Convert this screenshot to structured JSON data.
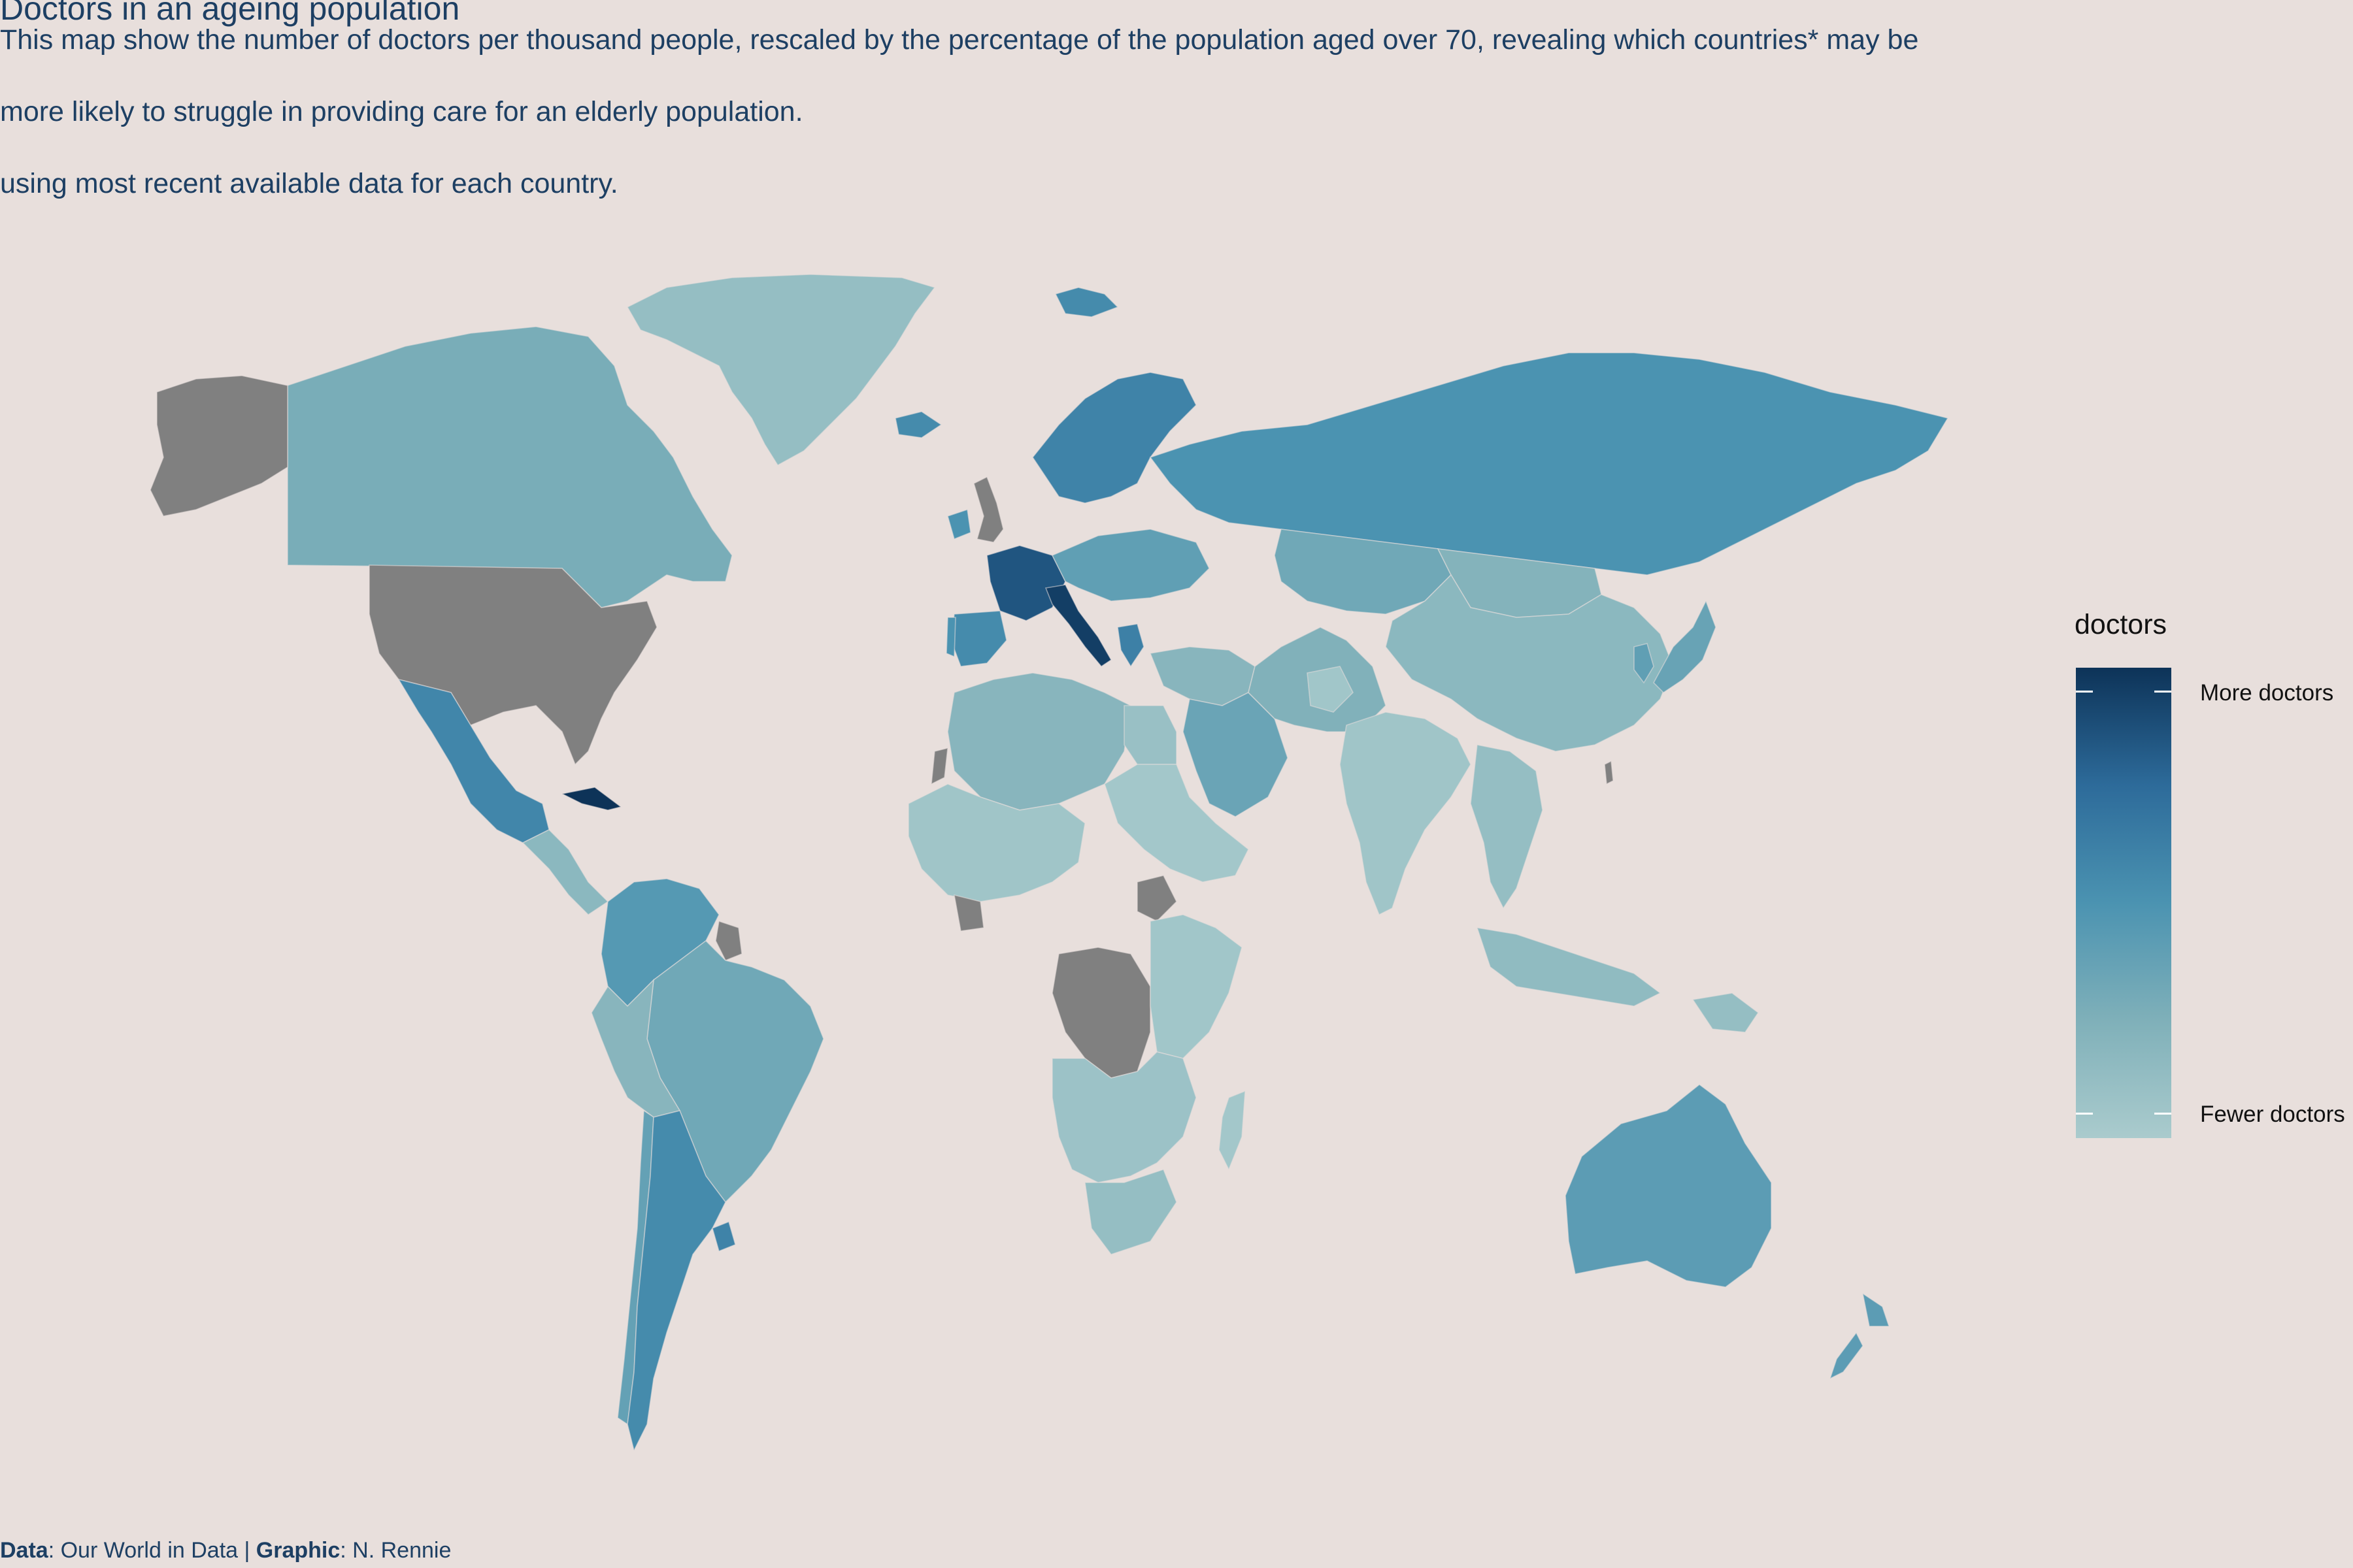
{
  "title": "Doctors in an ageing population",
  "subtitle_lines": [
    "This map show the number of doctors per thousand people, rescaled by the percentage of the population aged over 70, revealing which countries* may be",
    "more likely  to struggle in providing care for an elderly population.",
    "using most recent available data for each country."
  ],
  "caption": {
    "data_label": "Data",
    "data_value": ": Our World in Data | ",
    "graphic_label": "Graphic",
    "graphic_value": ": N. Rennie"
  },
  "legend": {
    "title": "doctors",
    "high_label": "More doctors",
    "low_label": "Fewer doctors",
    "gradient": [
      "#0d3358",
      "#2d6b9a",
      "#4b93b1",
      "#7fb0b9",
      "#aacbcd"
    ]
  },
  "colors": {
    "background": "#e8dfdc",
    "missing": "#808080",
    "text": "#1d3f63"
  },
  "map_data": {
    "value_scale": "0 = fewer doctors, 1 = more doctors (relative)",
    "countries": [
      {
        "name": "Greenland",
        "value": 0.12
      },
      {
        "name": "Canada",
        "value": 0.28
      },
      {
        "name": "Alaska (United States)",
        "value": null
      },
      {
        "name": "United States",
        "value": null
      },
      {
        "name": "Mexico",
        "value": 0.58
      },
      {
        "name": "Cuba",
        "value": 1.0
      },
      {
        "name": "Central America",
        "value": 0.18
      },
      {
        "name": "Colombia/Venezuela",
        "value": 0.45
      },
      {
        "name": "Guyana/Suriname region",
        "value": null
      },
      {
        "name": "Brazil",
        "value": 0.32
      },
      {
        "name": "Peru/Bolivia",
        "value": 0.2
      },
      {
        "name": "Chile",
        "value": 0.38
      },
      {
        "name": "Argentina",
        "value": 0.55
      },
      {
        "name": "Uruguay",
        "value": 0.6
      },
      {
        "name": "Iceland",
        "value": 0.55
      },
      {
        "name": "Svalbard",
        "value": 0.55
      },
      {
        "name": "Scandinavia",
        "value": 0.6
      },
      {
        "name": "United Kingdom",
        "value": null
      },
      {
        "name": "Ireland",
        "value": 0.5
      },
      {
        "name": "France",
        "value": 0.85
      },
      {
        "name": "Spain",
        "value": 0.55
      },
      {
        "name": "Portugal",
        "value": 0.5
      },
      {
        "name": "Italy",
        "value": 0.95
      },
      {
        "name": "Central Europe",
        "value": 0.4
      },
      {
        "name": "Greece",
        "value": 0.62
      },
      {
        "name": "Russia",
        "value": 0.5
      },
      {
        "name": "Kazakhstan",
        "value": 0.32
      },
      {
        "name": "Mongolia",
        "value": 0.22
      },
      {
        "name": "China",
        "value": 0.18
      },
      {
        "name": "Japan",
        "value": 0.36
      },
      {
        "name": "Korea",
        "value": 0.4
      },
      {
        "name": "Taiwan",
        "value": null
      },
      {
        "name": "Middle East",
        "value": 0.2
      },
      {
        "name": "Saudi Arabia",
        "value": 0.35
      },
      {
        "name": "Iran/Central Asia",
        "value": 0.24
      },
      {
        "name": "Afghanistan",
        "value": 0.05
      },
      {
        "name": "India",
        "value": 0.06
      },
      {
        "name": "Southeast Asia",
        "value": 0.12
      },
      {
        "name": "Indonesia",
        "value": 0.15
      },
      {
        "name": "Papua New Guinea",
        "value": 0.12
      },
      {
        "name": "Australia",
        "value": 0.42
      },
      {
        "name": "New Zealand",
        "value": 0.42
      },
      {
        "name": "North Africa",
        "value": 0.2
      },
      {
        "name": "Egypt",
        "value": 0.1
      },
      {
        "name": "Western Sahara",
        "value": null
      },
      {
        "name": "West Africa",
        "value": 0.06
      },
      {
        "name": "Cote d'Ivoire",
        "value": null
      },
      {
        "name": "Sudan/Horn of Africa",
        "value": 0.04
      },
      {
        "name": "South Sudan",
        "value": null
      },
      {
        "name": "DR Congo",
        "value": null
      },
      {
        "name": "East Africa",
        "value": 0.05
      },
      {
        "name": "Southern Africa",
        "value": 0.08
      },
      {
        "name": "South Africa",
        "value": 0.12
      },
      {
        "name": "Madagascar",
        "value": 0.04
      }
    ]
  }
}
